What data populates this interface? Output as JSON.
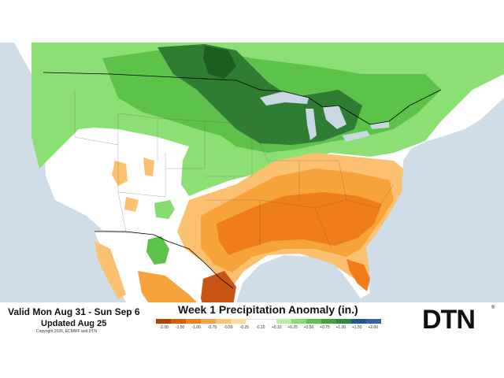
{
  "header": {
    "valid_range": "Valid Mon Aug 31 - Sun Sep 6",
    "updated": "Updated Aug 25",
    "copyright": "Copyright 2026, ECMWF and DTN"
  },
  "legend": {
    "title": "Week 1 Precipitation Anomaly (in.)",
    "ticks": [
      "-2.00",
      "-1.50",
      "-1.00",
      "-0.75",
      "-0.50",
      "-0.25",
      "-0.10",
      "+0.10",
      "+0.25",
      "+0.50",
      "+0.75",
      "+1.00",
      "+1.50",
      "+2.00"
    ],
    "colors": [
      "#b34200",
      "#d95f0e",
      "#f07f17",
      "#f7a33c",
      "#fbc070",
      "#fdd9a0",
      "#ffffff",
      "#ffffff",
      "#b7f0a8",
      "#86dd6e",
      "#5cc24a",
      "#3ea33a",
      "#2d8a3a",
      "#1f5a8a",
      "#3c5fb0"
    ]
  },
  "logo": {
    "text": "DTN",
    "mark": "®"
  },
  "map": {
    "colors": {
      "ocean": "#cfdde8",
      "land": "#ffffff",
      "wet_light": "#86dd6e",
      "wet_mid": "#5cc24a",
      "wet_dark": "#2e7d32",
      "wet_darkest": "#1b5e20",
      "dry_light": "#fbc070",
      "dry_mid": "#f7a33c",
      "dry_strong": "#ef7d1a",
      "dry_darkest": "#c95512",
      "lakes": "#c9d7e3",
      "borders": "#000000"
    }
  }
}
